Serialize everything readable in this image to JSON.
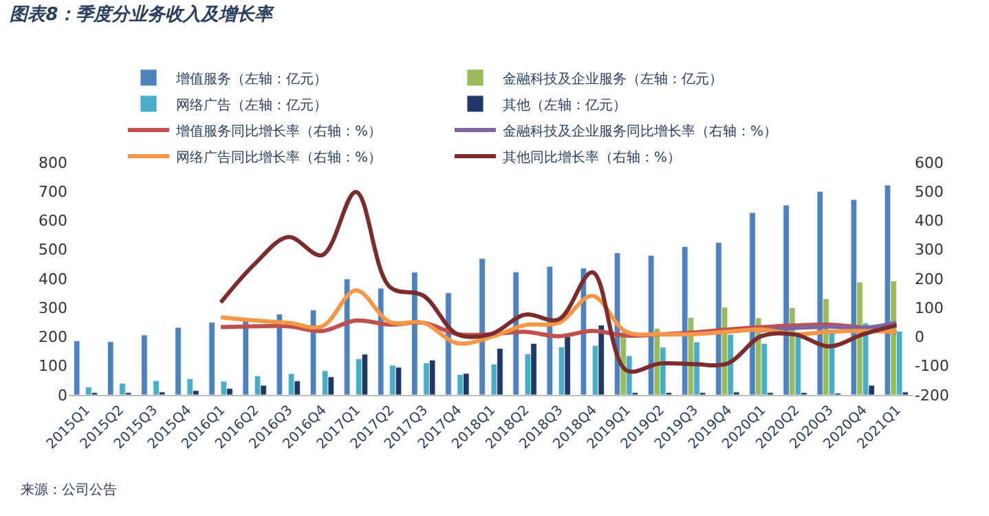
{
  "chart_data": {
    "type": "bar",
    "title": "图表8：季度分业务收入及增长率",
    "categories": [
      "2015Q1",
      "2015Q2",
      "2015Q3",
      "2015Q4",
      "2016Q1",
      "2016Q2",
      "2016Q3",
      "2016Q4",
      "2017Q1",
      "2017Q2",
      "2017Q3",
      "2017Q4",
      "2018Q1",
      "2018Q2",
      "2018Q3",
      "2018Q4",
      "2019Q1",
      "2019Q2",
      "2019Q3",
      "2019Q4",
      "2020Q1",
      "2020Q2",
      "2020Q3",
      "2020Q4",
      "2021Q1"
    ],
    "series": [
      {
        "name": "增值服务（左轴：亿元）",
        "color": "#4f81bd",
        "values": [
          186,
          183,
          206,
          232,
          250,
          260,
          278,
          292,
          399,
          367,
          422,
          351,
          469,
          423,
          442,
          436,
          489,
          480,
          510,
          524,
          627,
          653,
          700,
          672,
          722
        ]
      },
      {
        "name": "金融科技及企业服务（左轴：亿元）",
        "color": "#9bbb59",
        "values": [
          null,
          null,
          null,
          null,
          null,
          null,
          null,
          null,
          null,
          null,
          null,
          null,
          null,
          null,
          null,
          null,
          217,
          229,
          266,
          301,
          265,
          300,
          331,
          388,
          392
        ]
      },
      {
        "name": "网络广告（左轴：亿元）",
        "color": "#4bacc6",
        "values": [
          27,
          40,
          49,
          56,
          47,
          65,
          73,
          83,
          124,
          102,
          110,
          70,
          106,
          141,
          165,
          170,
          135,
          164,
          182,
          208,
          177,
          205,
          213,
          247,
          219
        ]
      },
      {
        "name": "其他（左轴：亿元）",
        "color": "#1f3864",
        "values": [
          8,
          8,
          10,
          15,
          22,
          33,
          48,
          62,
          140,
          95,
          120,
          74,
          160,
          177,
          200,
          240,
          8,
          8,
          8,
          10,
          8,
          8,
          6,
          33,
          10
        ]
      },
      {
        "name": "增值服务同比增长率（右轴：%）",
        "type": "line",
        "axis": "y2",
        "color": "#c0504d",
        "values": [
          null,
          null,
          null,
          null,
          33,
          36,
          36,
          20,
          56,
          42,
          48,
          9,
          9,
          17,
          2,
          20,
          4,
          8,
          15,
          25,
          33,
          39,
          42,
          31,
          15
        ]
      },
      {
        "name": "金融科技及企业服务同比增长率（右轴：%）",
        "type": "line",
        "axis": "y2",
        "color": "#8064a2",
        "values": [
          null,
          null,
          null,
          null,
          null,
          null,
          null,
          null,
          null,
          null,
          null,
          null,
          null,
          null,
          null,
          null,
          null,
          null,
          null,
          null,
          22,
          30,
          35,
          30,
          48
        ]
      },
      {
        "name": "网络广告同比增长率（右轴：%）",
        "type": "line",
        "axis": "y2",
        "color": "#f79646",
        "values": [
          null,
          null,
          null,
          null,
          67,
          56,
          48,
          36,
          160,
          51,
          48,
          -22,
          -1,
          40,
          48,
          141,
          17,
          9,
          9,
          17,
          25,
          9,
          17,
          20,
          17
        ]
      },
      {
        "name": "其他同比增长率（右轴：%）",
        "type": "line",
        "axis": "y2",
        "color": "#7b2c2c",
        "values": [
          null,
          null,
          null,
          null,
          118,
          250,
          343,
          281,
          498,
          172,
          141,
          9,
          9,
          76,
          60,
          222,
          -115,
          -92,
          -94,
          -92,
          2,
          8,
          -33,
          8,
          40
        ]
      }
    ],
    "ylim": [
      0,
      800
    ],
    "yticks": [
      0,
      100,
      200,
      300,
      400,
      500,
      600,
      700,
      800
    ],
    "y2lim": [
      -200,
      600
    ],
    "y2ticks": [
      -200,
      -100,
      0,
      100,
      200,
      300,
      400,
      500,
      600
    ],
    "legend": "top",
    "annotations": [
      "来源：公司公告"
    ]
  }
}
